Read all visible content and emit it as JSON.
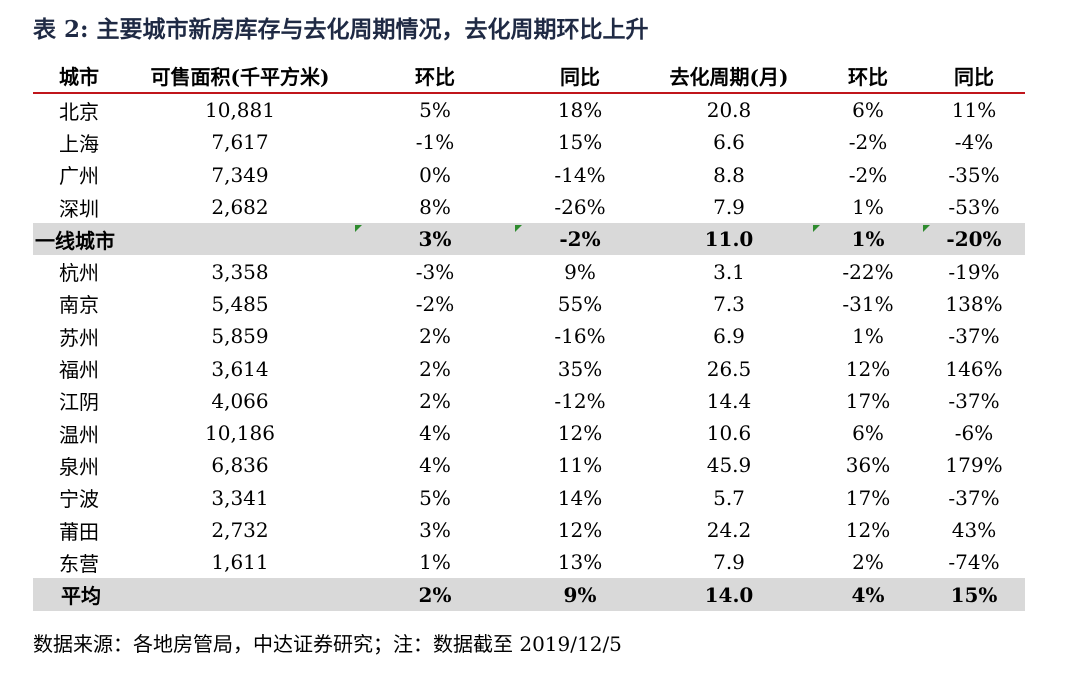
{
  "title": "表 2: 主要城市新房库存与去化周期情况，去化周期环比上升",
  "headers": [
    "城市",
    "可售面积(千平方米)",
    "环比",
    "同比",
    "去化周期(月)",
    "环比",
    "同比"
  ],
  "rows": [
    [
      "北京",
      "10,881",
      "5%",
      "18%",
      "20.8",
      "6%",
      "11%"
    ],
    [
      "上海",
      "7,617",
      "-1%",
      "15%",
      "6.6",
      "-2%",
      "-4%"
    ],
    [
      "广州",
      "7,349",
      "0%",
      "-14%",
      "8.8",
      "-2%",
      "-35%"
    ],
    [
      "深圳",
      "2,682",
      "8%",
      "-26%",
      "7.9",
      "1%",
      "-53%"
    ],
    [
      "一线城市",
      "",
      "3%",
      "-2%",
      "11.0",
      "1%",
      "-20%"
    ],
    [
      "杭州",
      "3,358",
      "-3%",
      "9%",
      "3.1",
      "-22%",
      "-19%"
    ],
    [
      "南京",
      "5,485",
      "-2%",
      "55%",
      "7.3",
      "-31%",
      "138%"
    ],
    [
      "苏州",
      "5,859",
      "2%",
      "-16%",
      "6.9",
      "1%",
      "-37%"
    ],
    [
      "福州",
      "3,614",
      "2%",
      "35%",
      "26.5",
      "12%",
      "146%"
    ],
    [
      "江阴",
      "4,066",
      "2%",
      "-12%",
      "14.4",
      "17%",
      "-37%"
    ],
    [
      "温州",
      "10,186",
      "4%",
      "12%",
      "10.6",
      "6%",
      "-6%"
    ],
    [
      "泉州",
      "6,836",
      "4%",
      "11%",
      "45.9",
      "36%",
      "179%"
    ],
    [
      "宁波",
      "3,341",
      "5%",
      "14%",
      "5.7",
      "17%",
      "-37%"
    ],
    [
      "莆田",
      "2,732",
      "3%",
      "12%",
      "24.2",
      "12%",
      "43%"
    ],
    [
      "东营",
      "1,611",
      "1%",
      "13%",
      "7.9",
      "2%",
      "-74%"
    ],
    [
      "平均",
      "",
      "2%",
      "9%",
      "14.0",
      "4%",
      "15%"
    ]
  ],
  "source": "数据来源：各地房管局，中达证券研究；注：数据截至 2019/12/5",
  "colors": {
    "header_rule": "#c0151b",
    "shaded_row": "#d9d9d9",
    "flag": "#2e8b2e",
    "title": "#1f2a44"
  }
}
